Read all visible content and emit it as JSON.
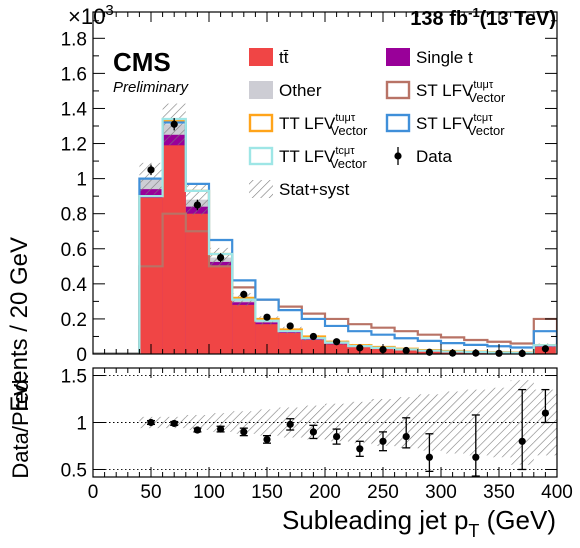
{
  "header": {
    "multiplier_base": "×10",
    "multiplier_exp": "3",
    "lumi_value": "138 fb",
    "lumi_exp": "-1",
    "lumi_energy": "(13 TeV)",
    "experiment": "CMS",
    "status": "Preliminary"
  },
  "legend": [
    {
      "key": "ttbar",
      "label": "tt̄",
      "style": "fill",
      "color": "#f04545"
    },
    {
      "key": "single_t",
      "label": "Single t",
      "style": "fill",
      "color": "#990099"
    },
    {
      "key": "other",
      "label": "Other",
      "style": "fill",
      "color": "#cdcdd4"
    },
    {
      "key": "st_tu",
      "label": "ST LFV",
      "sup": "tuμτ",
      "sub": "Vector",
      "style": "line",
      "color": "#b87366"
    },
    {
      "key": "tt_tu",
      "label": "TT LFV",
      "sup": "tuμτ",
      "sub": "Vector",
      "style": "line",
      "color": "#ffa41a"
    },
    {
      "key": "st_tc",
      "label": "ST LFV",
      "sup": "tcμτ",
      "sub": "Vector",
      "style": "line",
      "color": "#3f8fd9"
    },
    {
      "key": "tt_tc",
      "label": "TT LFV",
      "sup": "tcμτ",
      "sub": "Vector",
      "style": "line",
      "color": "#9ee6e6"
    },
    {
      "key": "data",
      "label": "Data",
      "style": "marker",
      "color": "#000000"
    },
    {
      "key": "unc",
      "label": "Stat+syst",
      "style": "hatch",
      "color": "#888888"
    }
  ],
  "chart_data": [
    {
      "type": "bar",
      "stacked": true,
      "xlabel": "Subleading jet p",
      "xlabel_sub": "T",
      "xlabel_unit": " (GeV)",
      "ylabel": "Events / 20 GeV",
      "y_multiplier": 1000,
      "xlim": [
        0,
        400
      ],
      "ylim": [
        0,
        1.95
      ],
      "x_ticks": [
        0,
        50,
        100,
        150,
        200,
        250,
        300,
        350,
        400
      ],
      "y_ticks": [
        0,
        0.2,
        0.4,
        0.6,
        0.8,
        1,
        1.2,
        1.4,
        1.6,
        1.8
      ],
      "y_tick_labels": [
        "0",
        "0.2",
        "0.4",
        "0.6",
        "0.8",
        "1",
        "1.2",
        "1.4",
        "1.6",
        "1.8"
      ],
      "bin_edges": [
        40,
        60,
        80,
        100,
        120,
        140,
        160,
        180,
        200,
        220,
        240,
        260,
        280,
        300,
        320,
        340,
        360,
        380,
        400
      ],
      "series": [
        {
          "name": "tt̄",
          "key": "ttbar",
          "values": [
            0.89,
            1.19,
            0.8,
            0.5,
            0.28,
            0.17,
            0.12,
            0.08,
            0.055,
            0.04,
            0.03,
            0.022,
            0.016,
            0.012,
            0.009,
            0.007,
            0.005,
            0.04
          ]
        },
        {
          "name": "Single t",
          "key": "single_t",
          "values": [
            0.05,
            0.06,
            0.04,
            0.025,
            0.015,
            0.01,
            0.007,
            0.005,
            0.004,
            0.003,
            0.002,
            0.0015,
            0.001,
            0.001,
            0.0008,
            0.0006,
            0.0005,
            0.003
          ]
        },
        {
          "name": "Other",
          "key": "other",
          "values": [
            0.06,
            0.06,
            0.04,
            0.025,
            0.015,
            0.01,
            0.008,
            0.006,
            0.005,
            0.004,
            0.003,
            0.0025,
            0.002,
            0.0015,
            0.001,
            0.001,
            0.0008,
            0.005
          ]
        }
      ],
      "signals": [
        {
          "name": "ST LFV tuμτ Vector",
          "key": "st_tu",
          "values": [
            0.5,
            0.8,
            0.7,
            0.5,
            0.38,
            0.31,
            0.27,
            0.23,
            0.2,
            0.17,
            0.15,
            0.13,
            0.11,
            0.095,
            0.08,
            0.07,
            0.06,
            0.2
          ]
        },
        {
          "name": "TT LFV tuμτ Vector",
          "key": "tt_tu",
          "values": [
            0.9,
            1.33,
            0.93,
            0.57,
            0.32,
            0.2,
            0.14,
            0.1,
            0.07,
            0.05,
            0.04,
            0.03,
            0.022,
            0.017,
            0.013,
            0.01,
            0.008,
            0.05
          ]
        },
        {
          "name": "ST LFV tcμτ Vector",
          "key": "st_tc",
          "values": [
            1.0,
            1.32,
            0.97,
            0.65,
            0.42,
            0.31,
            0.25,
            0.2,
            0.16,
            0.13,
            0.11,
            0.09,
            0.075,
            0.062,
            0.052,
            0.044,
            0.037,
            0.13
          ]
        },
        {
          "name": "TT LFV tcμτ Vector",
          "key": "tt_tc",
          "values": [
            0.9,
            1.34,
            0.93,
            0.57,
            0.31,
            0.19,
            0.13,
            0.09,
            0.065,
            0.045,
            0.035,
            0.026,
            0.019,
            0.014,
            0.011,
            0.008,
            0.006,
            0.05
          ]
        }
      ],
      "data_points": {
        "x": [
          50,
          70,
          90,
          110,
          130,
          150,
          170,
          190,
          210,
          230,
          250,
          270,
          290,
          310,
          330,
          350,
          370,
          390
        ],
        "y": [
          1.05,
          1.31,
          0.85,
          0.55,
          0.34,
          0.21,
          0.16,
          0.1,
          0.07,
          0.035,
          0.025,
          0.02,
          0.01,
          0.005,
          0.005,
          0.004,
          0.003,
          0.03
        ],
        "yerr": [
          0.03,
          0.035,
          0.03,
          0.025,
          0.02,
          0.015,
          0.013,
          0.01,
          0.009,
          0.006,
          0.005,
          0.005,
          0.004,
          0.003,
          0.003,
          0.002,
          0.002,
          0.006
        ]
      },
      "uncertainty_rel": [
        0.09,
        0.09,
        0.1,
        0.1,
        0.12,
        0.13,
        0.15,
        0.18,
        0.2,
        0.22,
        0.25,
        0.27,
        0.3,
        0.33,
        0.35,
        0.37,
        0.39,
        0.25
      ]
    },
    {
      "type": "scatter",
      "ylabel": "Data/Pred.",
      "xlabel": "Subleading jet p",
      "xlim": [
        0,
        400
      ],
      "ylim": [
        0.42,
        1.58
      ],
      "y_ticks": [
        0.5,
        1,
        1.5
      ],
      "y_tick_labels": [
        "0.5",
        "1",
        "1.5"
      ],
      "x_ticks": [
        0,
        50,
        100,
        150,
        200,
        250,
        300,
        350,
        400
      ],
      "x_tick_labels": [
        "0",
        "50",
        "100",
        "150",
        "200",
        "250",
        "300",
        "350",
        "400"
      ],
      "reference_lines": [
        0.5,
        1,
        1.5
      ],
      "x": [
        50,
        70,
        90,
        110,
        130,
        150,
        170,
        190,
        210,
        230,
        250,
        270,
        290,
        310,
        330,
        350,
        370,
        390
      ],
      "y": [
        1.0,
        0.99,
        0.92,
        0.93,
        0.9,
        0.82,
        0.98,
        0.9,
        0.85,
        0.72,
        0.8,
        0.85,
        0.63,
        null,
        0.63,
        null,
        0.8,
        1.1
      ],
      "yerr_low": [
        0.02,
        0.02,
        0.02,
        0.03,
        0.04,
        0.04,
        0.06,
        0.07,
        0.08,
        0.08,
        0.1,
        0.12,
        0.15,
        null,
        0.2,
        null,
        0.3,
        0.1
      ],
      "yerr_high": [
        0.02,
        0.02,
        0.02,
        0.03,
        0.04,
        0.04,
        0.06,
        0.07,
        0.08,
        0.08,
        0.1,
        0.2,
        0.25,
        null,
        0.45,
        null,
        0.55,
        0.25
      ],
      "band_halfwidth": [
        0.06,
        0.06,
        0.08,
        0.1,
        0.12,
        0.14,
        0.16,
        0.18,
        0.2,
        0.22,
        0.25,
        0.27,
        0.3,
        0.33,
        0.35,
        0.37,
        0.45,
        0.35
      ]
    }
  ]
}
